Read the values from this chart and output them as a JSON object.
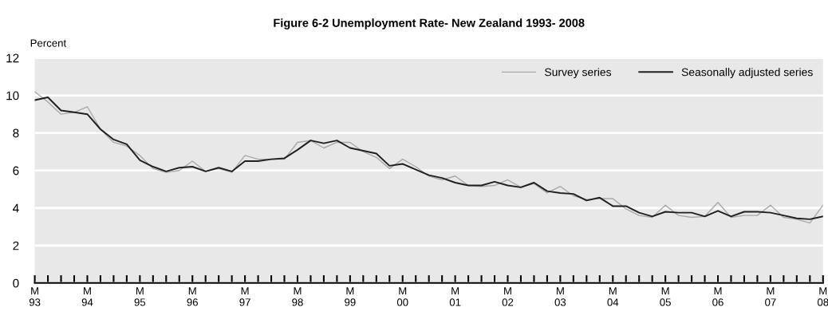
{
  "chart_data": {
    "type": "line",
    "title": "Figure 6-2 Unemployment Rate- New Zealand 1993- 2008",
    "ylabel": "Percent",
    "categories": [
      "M\n93",
      null,
      null,
      null,
      "M\n94",
      null,
      null,
      null,
      "M\n95",
      null,
      null,
      null,
      "M\n96",
      null,
      null,
      null,
      "M\n97",
      null,
      null,
      null,
      "M\n98",
      null,
      null,
      null,
      "M\n99",
      null,
      null,
      null,
      "M\n00",
      null,
      null,
      null,
      "M\n01",
      null,
      null,
      null,
      "M\n02",
      null,
      null,
      null,
      "M\n03",
      null,
      null,
      null,
      "M\n04",
      null,
      null,
      null,
      "M\n05",
      null,
      null,
      null,
      "M\n06",
      null,
      null,
      null,
      "M\n07",
      null,
      null,
      null,
      "M\n08"
    ],
    "series": [
      {
        "name": "Survey series",
        "color": "#a8a8a8",
        "values": [
          10.2,
          9.65,
          9.0,
          9.1,
          9.4,
          8.2,
          7.5,
          7.3,
          6.8,
          6.1,
          5.9,
          6.0,
          6.5,
          5.95,
          6.1,
          5.9,
          6.8,
          6.6,
          6.6,
          6.6,
          7.5,
          7.6,
          7.2,
          7.5,
          7.5,
          7.0,
          6.7,
          6.1,
          6.6,
          6.2,
          5.7,
          5.5,
          5.7,
          5.2,
          5.15,
          5.2,
          5.5,
          5.1,
          5.3,
          4.8,
          5.15,
          4.65,
          4.45,
          4.5,
          4.5,
          3.95,
          3.6,
          3.5,
          4.15,
          3.6,
          3.5,
          3.55,
          4.3,
          3.5,
          3.6,
          3.6,
          4.15,
          3.5,
          3.4,
          3.2,
          4.15
        ]
      },
      {
        "name": "Seasonally adjusted series",
        "color": "#202020",
        "values": [
          9.75,
          9.9,
          9.2,
          9.1,
          9.0,
          8.2,
          7.65,
          7.4,
          6.55,
          6.2,
          5.95,
          6.15,
          6.2,
          5.95,
          6.15,
          5.95,
          6.5,
          6.5,
          6.6,
          6.65,
          7.1,
          7.6,
          7.45,
          7.6,
          7.2,
          7.05,
          6.9,
          6.25,
          6.35,
          6.05,
          5.75,
          5.6,
          5.35,
          5.2,
          5.2,
          5.4,
          5.2,
          5.1,
          5.35,
          4.9,
          4.8,
          4.75,
          4.4,
          4.55,
          4.1,
          4.1,
          3.75,
          3.55,
          3.8,
          3.75,
          3.75,
          3.55,
          3.85,
          3.55,
          3.8,
          3.8,
          3.75,
          3.6,
          3.45,
          3.4,
          3.55
        ]
      }
    ],
    "ylim": [
      0,
      12
    ],
    "yticks": [
      0,
      2,
      4,
      6,
      8,
      10,
      12
    ],
    "grid": "y",
    "legend": "top right",
    "marker": "none",
    "line_style": "solid"
  }
}
